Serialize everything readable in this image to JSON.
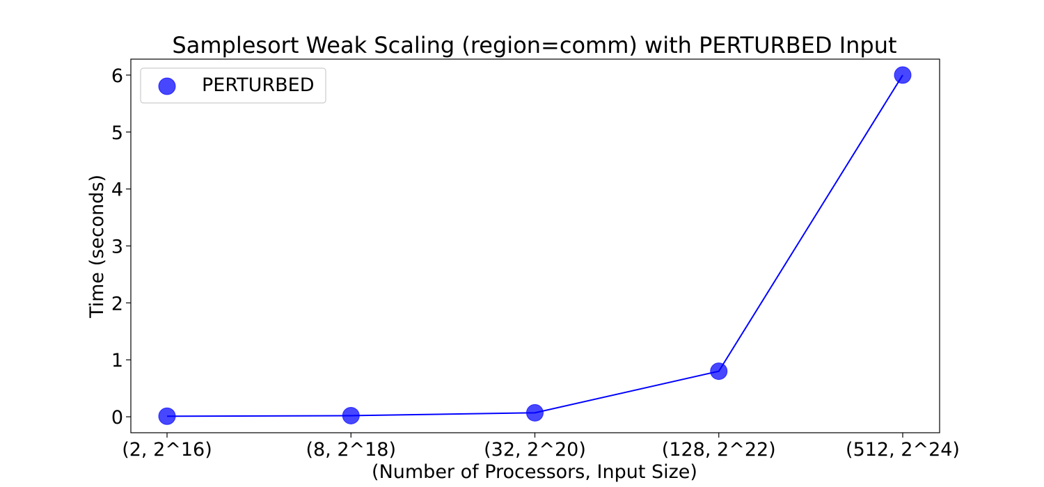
{
  "chart_data": {
    "type": "line",
    "title": "Samplesort Weak Scaling (region=comm) with PERTURBED Input",
    "xlabel": "(Number of Processors, Input Size)",
    "ylabel": "Time (seconds)",
    "categories": [
      "(2, 2^16)",
      "(8, 2^18)",
      "(32, 2^20)",
      "(128, 2^22)",
      "(512, 2^24)"
    ],
    "series": [
      {
        "name": "PERTURBED",
        "values": [
          0.01,
          0.02,
          0.07,
          0.8,
          6.0
        ],
        "color": "#0000ff"
      }
    ],
    "ylim": [
      -0.28,
      6.28
    ],
    "yticks": [
      0,
      1,
      2,
      3,
      4,
      5,
      6
    ],
    "grid": false,
    "legend": "top-left",
    "marker_color": "#0000ff",
    "line_color": "#0000ff"
  }
}
